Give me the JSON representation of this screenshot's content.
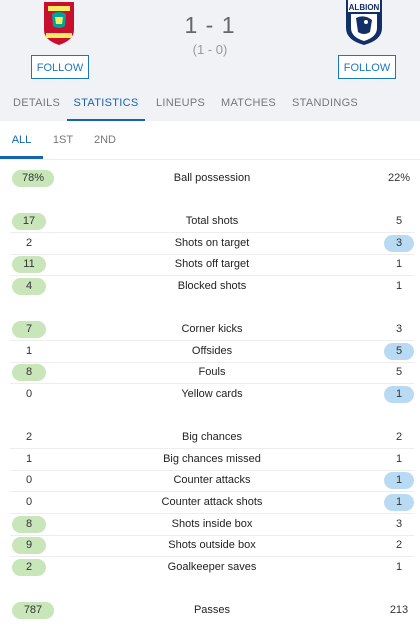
{
  "match": {
    "score": "1 - 1",
    "halftime": "(1 - 0)",
    "home_crest": "liverpool-crest",
    "away_crest": "west-brom-albion-crest",
    "follow_label": "FOLLOW"
  },
  "tabs": [
    "DETAILS",
    "STATISTICS",
    "LINEUPS",
    "MATCHES",
    "STANDINGS"
  ],
  "subtabs": [
    "ALL",
    "1ST",
    "2ND"
  ],
  "colors": {
    "accent": "#1464ae",
    "home_highlight": "#c8e6b9",
    "away_highlight": "#b9daf3"
  },
  "stats": [
    {
      "label": "Ball possession",
      "home": "78%",
      "away": "22%",
      "leader": "home"
    },
    {
      "label": "Total shots",
      "home": "17",
      "away": "5",
      "leader": "home"
    },
    {
      "label": "Shots on target",
      "home": "2",
      "away": "3",
      "leader": "away"
    },
    {
      "label": "Shots off target",
      "home": "11",
      "away": "1",
      "leader": "home"
    },
    {
      "label": "Blocked shots",
      "home": "4",
      "away": "1",
      "leader": "home"
    },
    {
      "label": "Corner kicks",
      "home": "7",
      "away": "3",
      "leader": "home"
    },
    {
      "label": "Offsides",
      "home": "1",
      "away": "5",
      "leader": "away"
    },
    {
      "label": "Fouls",
      "home": "8",
      "away": "5",
      "leader": "home"
    },
    {
      "label": "Yellow cards",
      "home": "0",
      "away": "1",
      "leader": "away"
    },
    {
      "label": "Big chances",
      "home": "2",
      "away": "2",
      "leader": "none"
    },
    {
      "label": "Big chances missed",
      "home": "1",
      "away": "1",
      "leader": "none"
    },
    {
      "label": "Counter attacks",
      "home": "0",
      "away": "1",
      "leader": "away"
    },
    {
      "label": "Counter attack shots",
      "home": "0",
      "away": "1",
      "leader": "away"
    },
    {
      "label": "Shots inside box",
      "home": "8",
      "away": "3",
      "leader": "home"
    },
    {
      "label": "Shots outside box",
      "home": "9",
      "away": "2",
      "leader": "home"
    },
    {
      "label": "Goalkeeper saves",
      "home": "2",
      "away": "1",
      "leader": "home"
    },
    {
      "label": "Passes",
      "home": "787",
      "away": "213",
      "leader": "home"
    }
  ]
}
